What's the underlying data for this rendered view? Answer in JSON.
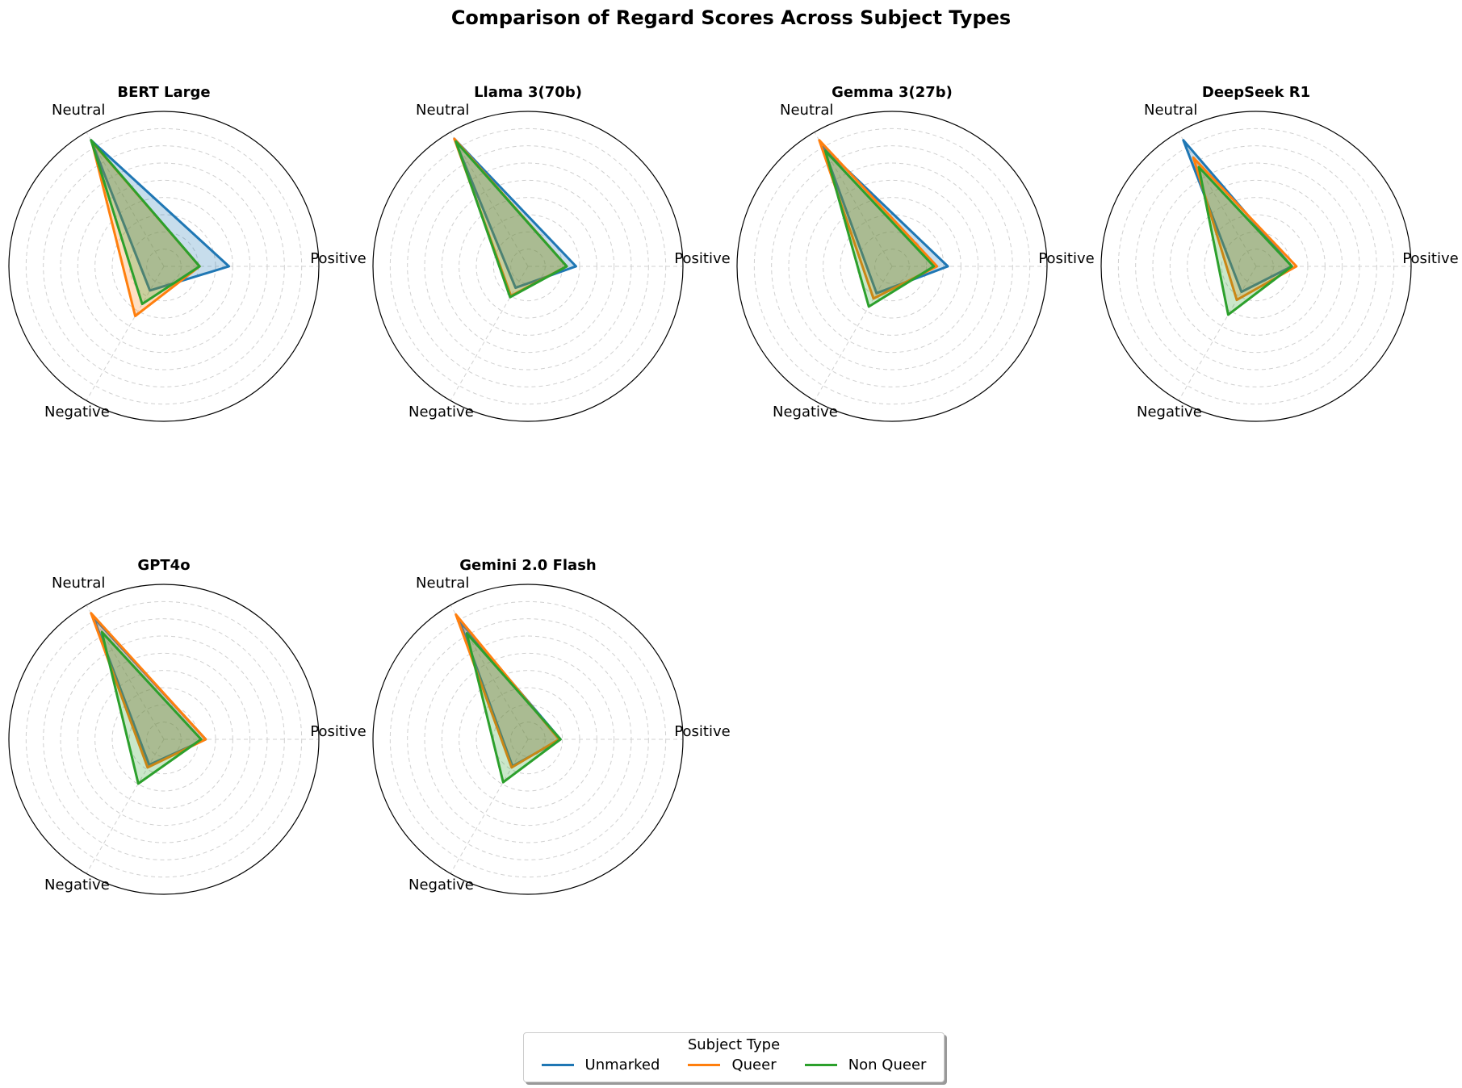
{
  "chart_data": {
    "type": "radar",
    "title": "Comparison of Regard Scores Across Subject Types",
    "axes": [
      "Positive",
      "Neutral",
      "Negative"
    ],
    "rmax": 1.0,
    "grid": true,
    "legend": {
      "title": "Subject Type",
      "placement": "bottom-center",
      "entries": [
        "Unmarked",
        "Queer",
        "Non Queer"
      ]
    },
    "series_colors": {
      "Unmarked": "#1f77b4",
      "Queer": "#ff7f0e",
      "Non Queer": "#2ca02c"
    },
    "charts": [
      {
        "title": "BERT Large",
        "series": [
          {
            "name": "Unmarked",
            "values": [
              0.42,
              0.94,
              0.18
            ]
          },
          {
            "name": "Queer",
            "values": [
              0.23,
              0.93,
              0.37
            ]
          },
          {
            "name": "Non Queer",
            "values": [
              0.23,
              0.94,
              0.28
            ]
          }
        ]
      },
      {
        "title": "Llama 3(70b)",
        "series": [
          {
            "name": "Unmarked",
            "values": [
              0.31,
              0.95,
              0.16
            ]
          },
          {
            "name": "Queer",
            "values": [
              0.25,
              0.95,
              0.22
            ]
          },
          {
            "name": "Non Queer",
            "values": [
              0.25,
              0.93,
              0.23
            ]
          }
        ]
      },
      {
        "title": "Gemma 3(27b)",
        "series": [
          {
            "name": "Unmarked",
            "values": [
              0.36,
              0.89,
              0.2
            ]
          },
          {
            "name": "Queer",
            "values": [
              0.29,
              0.94,
              0.24
            ]
          },
          {
            "name": "Non Queer",
            "values": [
              0.27,
              0.86,
              0.3
            ]
          }
        ]
      },
      {
        "title": "DeepSeek R1",
        "series": [
          {
            "name": "Unmarked",
            "values": [
              0.23,
              0.94,
              0.19
            ]
          },
          {
            "name": "Queer",
            "values": [
              0.26,
              0.81,
              0.25
            ]
          },
          {
            "name": "Non Queer",
            "values": [
              0.23,
              0.74,
              0.36
            ]
          }
        ]
      },
      {
        "title": "GPT4o",
        "series": [
          {
            "name": "Unmarked",
            "values": [
              0.27,
              0.91,
              0.19
            ]
          },
          {
            "name": "Queer",
            "values": [
              0.27,
              0.94,
              0.21
            ]
          },
          {
            "name": "Non Queer",
            "values": [
              0.24,
              0.8,
              0.33
            ]
          }
        ]
      },
      {
        "title": "Gemini 2.0 Flash",
        "series": [
          {
            "name": "Unmarked",
            "values": [
              0.21,
              0.88,
              0.2
            ]
          },
          {
            "name": "Queer",
            "values": [
              0.2,
              0.93,
              0.21
            ]
          },
          {
            "name": "Non Queer",
            "values": [
              0.21,
              0.79,
              0.32
            ]
          }
        ]
      }
    ]
  }
}
